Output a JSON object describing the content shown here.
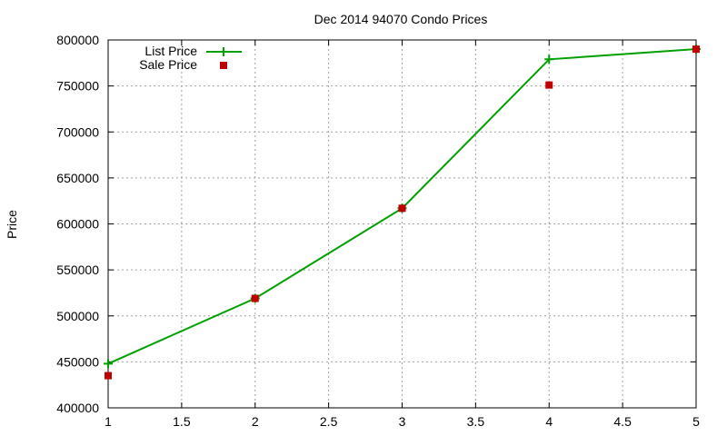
{
  "chart_data": {
    "type": "line",
    "title": "Dec 2014 94070 Condo Prices",
    "xlabel": "",
    "ylabel": "Price",
    "xlim": [
      1,
      5
    ],
    "ylim": [
      400000,
      800000
    ],
    "xticks": [
      "1",
      "1.5",
      "2",
      "2.5",
      "3",
      "3.5",
      "4",
      "4.5",
      "5"
    ],
    "yticks": [
      "400000",
      "450000",
      "500000",
      "550000",
      "600000",
      "650000",
      "700000",
      "750000",
      "800000"
    ],
    "grid": true,
    "legend_position": "top-left",
    "series": [
      {
        "name": "List Price",
        "style": "line-with-plus-markers",
        "color": "#00a000",
        "x": [
          1,
          2,
          3,
          4,
          5
        ],
        "y": [
          448000,
          519000,
          617000,
          779000,
          790000
        ]
      },
      {
        "name": "Sale Price",
        "style": "square-markers",
        "color": "#c00000",
        "x": [
          1,
          2,
          3,
          4,
          5
        ],
        "y": [
          435000,
          519000,
          617000,
          751000,
          790000
        ]
      }
    ]
  }
}
